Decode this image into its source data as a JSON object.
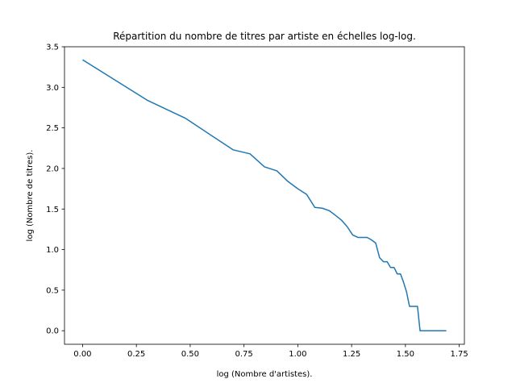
{
  "chart_data": {
    "type": "line",
    "title": "Répartition du nombre de titres par artiste en échelles log-log.",
    "xlabel": "log (Nombre d'artistes).",
    "ylabel": "log (Nombre de titres).",
    "xlim": [
      -0.084,
      1.774
    ],
    "ylim": [
      -0.167,
      3.5
    ],
    "xticks": [
      0.0,
      0.25,
      0.5,
      0.75,
      1.0,
      1.25,
      1.5,
      1.75
    ],
    "xtick_labels": [
      "0.00",
      "0.25",
      "0.50",
      "0.75",
      "1.00",
      "1.25",
      "1.50",
      "1.75"
    ],
    "yticks": [
      0.0,
      0.5,
      1.0,
      1.5,
      2.0,
      2.5,
      3.0,
      3.5
    ],
    "ytick_labels": [
      "0.0",
      "0.5",
      "1.0",
      "1.5",
      "2.0",
      "2.5",
      "3.0",
      "3.5"
    ],
    "grid": false,
    "color": "#1f77b4",
    "series": [
      {
        "x": [
          0.0,
          0.301,
          0.477,
          0.699,
          0.778,
          0.845,
          0.903,
          0.954,
          1.0,
          1.041,
          1.079,
          1.114,
          1.146,
          1.176,
          1.204,
          1.23,
          1.255,
          1.279,
          1.301,
          1.322,
          1.342,
          1.362,
          1.38,
          1.398,
          1.415,
          1.431,
          1.447,
          1.462,
          1.477,
          1.491,
          1.505,
          1.519,
          1.531,
          1.544,
          1.556,
          1.568,
          1.58,
          1.591,
          1.602,
          1.613,
          1.623,
          1.633,
          1.643,
          1.653,
          1.663,
          1.672,
          1.681,
          1.69
        ],
        "y": [
          3.34,
          2.84,
          2.62,
          2.23,
          2.18,
          2.02,
          1.97,
          1.84,
          1.75,
          1.68,
          1.52,
          1.51,
          1.48,
          1.42,
          1.36,
          1.28,
          1.18,
          1.15,
          1.15,
          1.15,
          1.12,
          1.08,
          0.9,
          0.85,
          0.85,
          0.78,
          0.78,
          0.7,
          0.7,
          0.6,
          0.48,
          0.3,
          0.3,
          0.3,
          0.3,
          0.0,
          0.0,
          0.0,
          0.0,
          0.0,
          0.0,
          0.0,
          0.0,
          0.0,
          0.0,
          0.0,
          0.0,
          0.0
        ]
      }
    ]
  }
}
